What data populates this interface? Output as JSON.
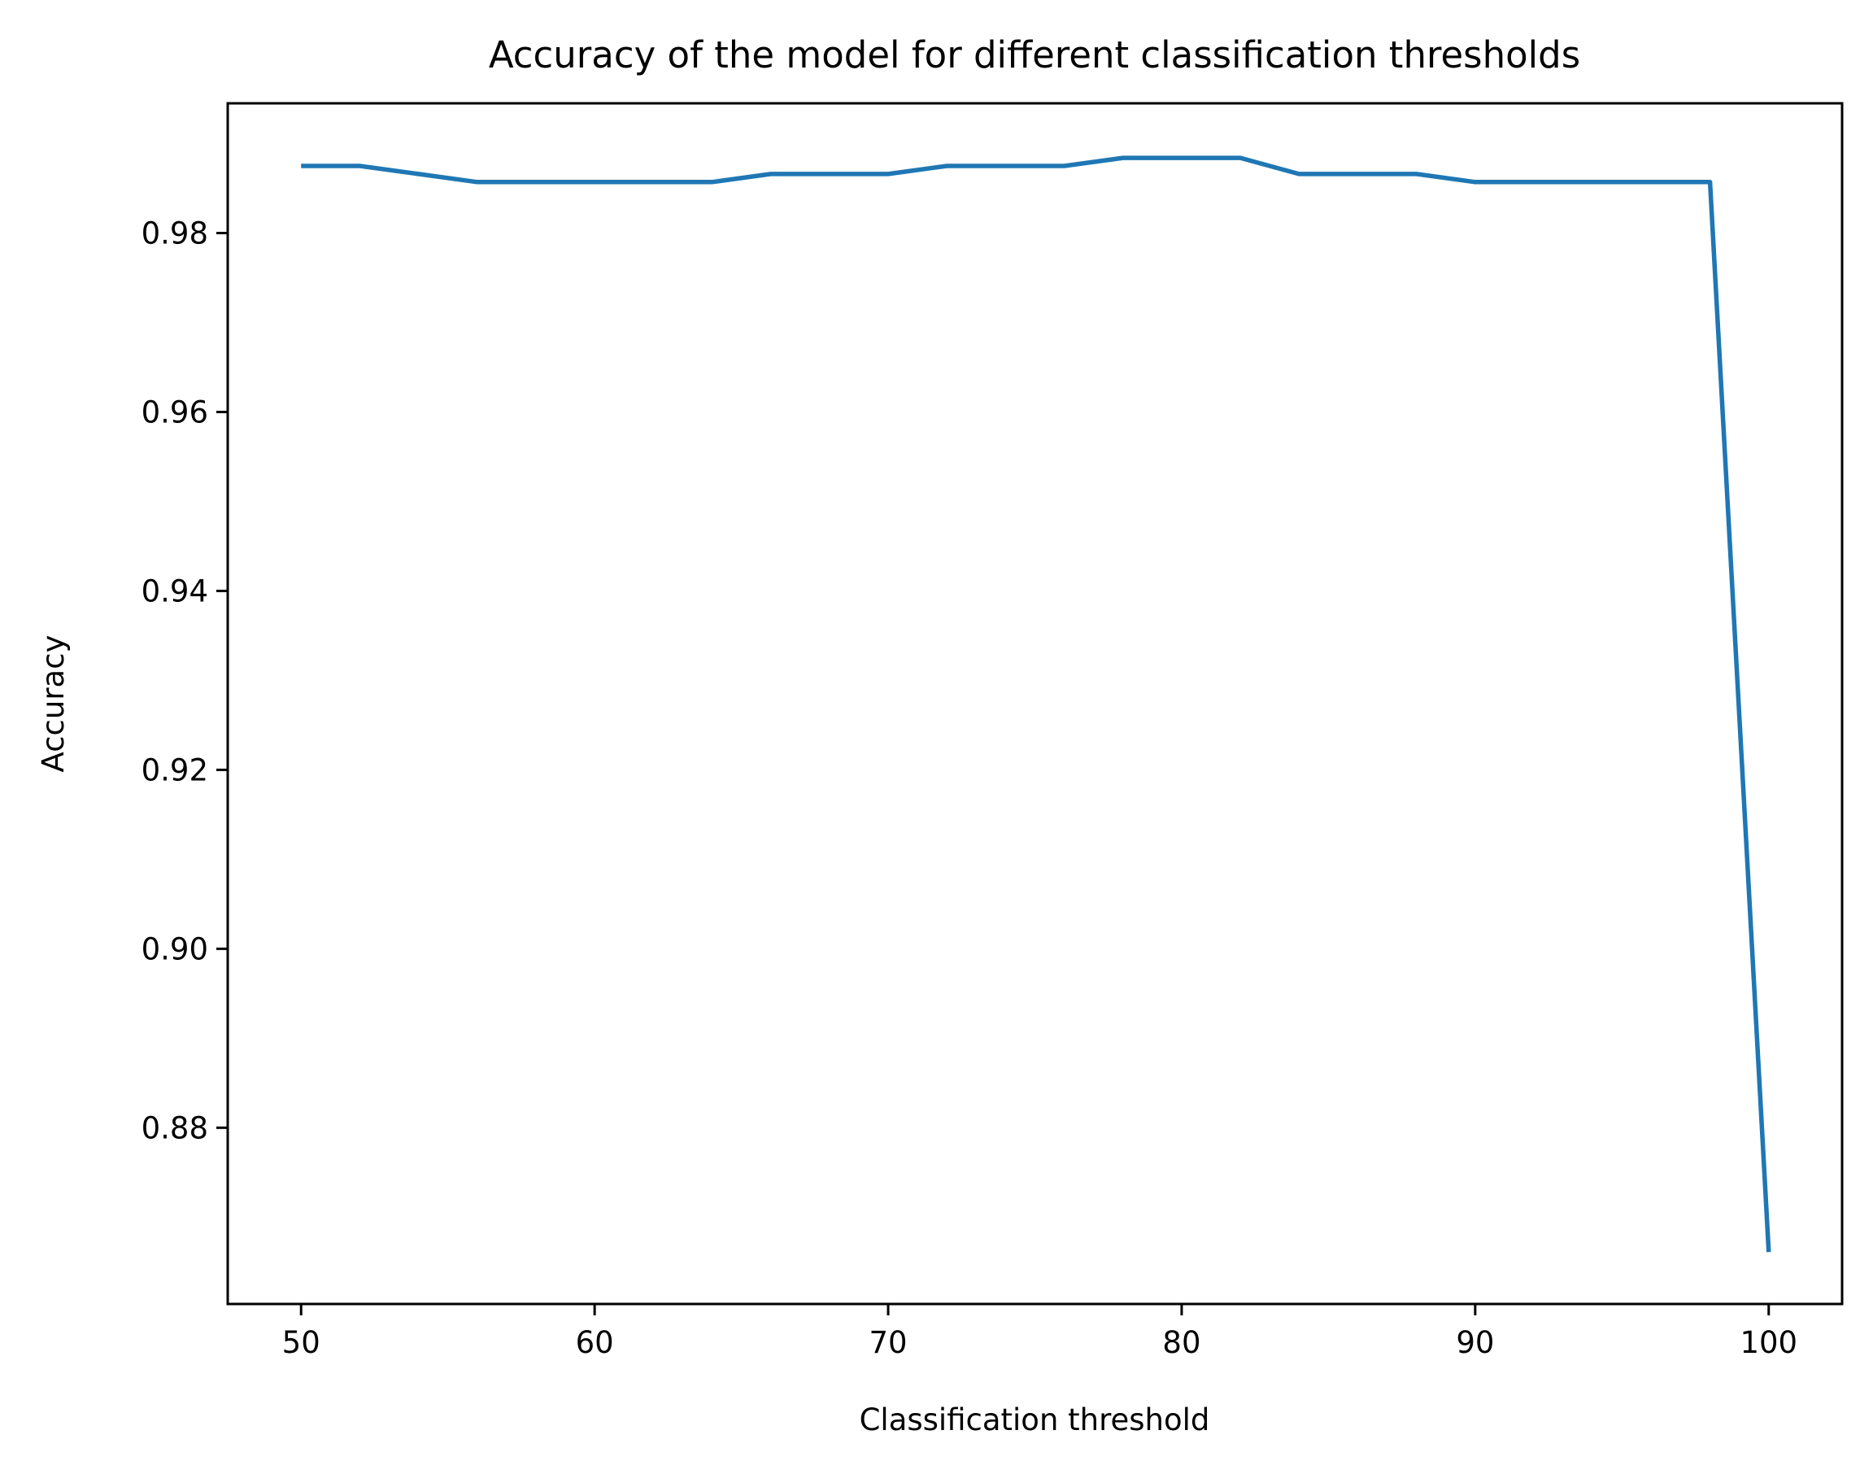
{
  "chart_data": {
    "type": "line",
    "title": "Accuracy of the model for different classification thresholds",
    "xlabel": "Classification threshold",
    "ylabel": "Accuracy",
    "xlim": [
      47.5,
      102.5
    ],
    "ylim": [
      0.8603,
      0.9945
    ],
    "xticks": [
      50,
      60,
      70,
      80,
      90,
      100
    ],
    "yticks": [
      0.88,
      0.9,
      0.92,
      0.94,
      0.96,
      0.98
    ],
    "ytick_labels": [
      "0.88",
      "0.90",
      "0.92",
      "0.94",
      "0.96",
      "0.98"
    ],
    "grid": false,
    "line_color": "#1f77b4",
    "series": [
      {
        "x": [
          50,
          52,
          54,
          56,
          58,
          60,
          62,
          64,
          66,
          68,
          70,
          72,
          74,
          76,
          78,
          80,
          82,
          84,
          86,
          88,
          90,
          92,
          94,
          96,
          98,
          100
        ],
        "values": [
          0.9875,
          0.9875,
          0.9866,
          0.9857,
          0.9857,
          0.9857,
          0.9857,
          0.9857,
          0.9866,
          0.9866,
          0.9866,
          0.9875,
          0.9875,
          0.9875,
          0.9884,
          0.9884,
          0.9884,
          0.9866,
          0.9866,
          0.9866,
          0.9857,
          0.9857,
          0.9857,
          0.9857,
          0.9857,
          0.8661
        ]
      }
    ]
  }
}
